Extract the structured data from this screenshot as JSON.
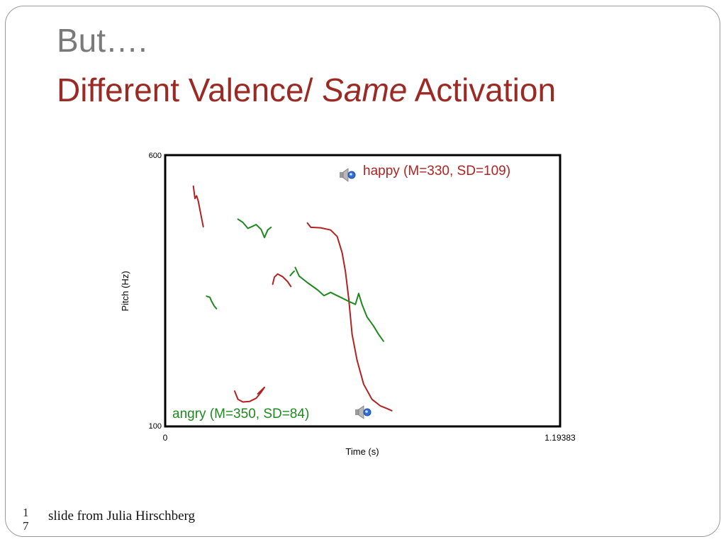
{
  "slide": {
    "title_line1": "But….",
    "title_line2_part1": "Different Valence/ ",
    "title_line2_em": "Same",
    "title_line2_part2": " Activation",
    "slide_number": "17",
    "credit": "slide from Julia Hirschberg"
  },
  "colors": {
    "happy": "#b22222",
    "angry": "#1e8a1e",
    "title_gray": "#7a7a7a",
    "title_red": "#9b2a24"
  },
  "chart_data": {
    "type": "line",
    "xlabel": "Time (s)",
    "ylabel": "Pitch (Hz)",
    "xlim": [
      0,
      1.19383
    ],
    "ylim": [
      100,
      600
    ],
    "x_tick_labels": [
      "0",
      "1.19383"
    ],
    "y_tick_labels": [
      "600",
      "100"
    ],
    "grid": false,
    "legend": [
      {
        "series": "happy",
        "label": "happy (M=330, SD=109)",
        "position": "top-right",
        "icon": "speaker-icon"
      },
      {
        "series": "angry",
        "label": "angry (M=350, SD=84)",
        "position": "bottom-left",
        "icon": "speaker-icon"
      }
    ],
    "series": [
      {
        "name": "happy",
        "segments": [
          [
            [
              0.085,
              543
            ],
            [
              0.09,
              520
            ],
            [
              0.095,
              525
            ],
            [
              0.1,
              515
            ],
            [
              0.108,
              490
            ],
            [
              0.115,
              468
            ]
          ],
          [
            [
              0.21,
              165
            ],
            [
              0.22,
              150
            ],
            [
              0.235,
              145
            ],
            [
              0.255,
              146
            ],
            [
              0.275,
              152
            ],
            [
              0.29,
              163
            ],
            [
              0.3,
              172
            ],
            [
              0.28,
              160
            ]
          ],
          [
            [
              0.325,
              362
            ],
            [
              0.33,
              375
            ],
            [
              0.34,
              381
            ],
            [
              0.355,
              376
            ],
            [
              0.37,
              367
            ],
            [
              0.38,
              358
            ]
          ],
          [
            [
              0.43,
              475
            ],
            [
              0.44,
              467
            ],
            [
              0.47,
              466
            ],
            [
              0.5,
              462
            ],
            [
              0.52,
              450
            ],
            [
              0.535,
              420
            ],
            [
              0.545,
              385
            ],
            [
              0.555,
              335
            ],
            [
              0.565,
              270
            ],
            [
              0.58,
              222
            ],
            [
              0.6,
              178
            ],
            [
              0.625,
              150
            ],
            [
              0.65,
              138
            ],
            [
              0.67,
              133
            ],
            [
              0.685,
              129
            ]
          ]
        ]
      },
      {
        "name": "angry",
        "segments": [
          [
            [
              0.125,
              340
            ],
            [
              0.135,
              338
            ],
            [
              0.14,
              331
            ],
            [
              0.148,
              322
            ],
            [
              0.155,
              317
            ]
          ],
          [
            [
              0.22,
              482
            ],
            [
              0.235,
              476
            ],
            [
              0.25,
              465
            ],
            [
              0.265,
              469
            ],
            [
              0.275,
              472
            ],
            [
              0.29,
              463
            ],
            [
              0.3,
              448
            ],
            [
              0.31,
              462
            ],
            [
              0.32,
              467
            ]
          ],
          [
            [
              0.378,
              378
            ],
            [
              0.385,
              383
            ],
            [
              0.39,
              386
            ]
          ],
          [
            [
              0.393,
              393
            ],
            [
              0.405,
              377
            ],
            [
              0.43,
              365
            ],
            [
              0.46,
              352
            ],
            [
              0.48,
              341
            ],
            [
              0.5,
              347
            ],
            [
              0.53,
              338
            ],
            [
              0.56,
              329
            ],
            [
              0.575,
              325
            ],
            [
              0.585,
              345
            ],
            [
              0.595,
              325
            ],
            [
              0.61,
              302
            ],
            [
              0.63,
              285
            ],
            [
              0.645,
              270
            ],
            [
              0.66,
              257
            ]
          ]
        ]
      }
    ]
  }
}
